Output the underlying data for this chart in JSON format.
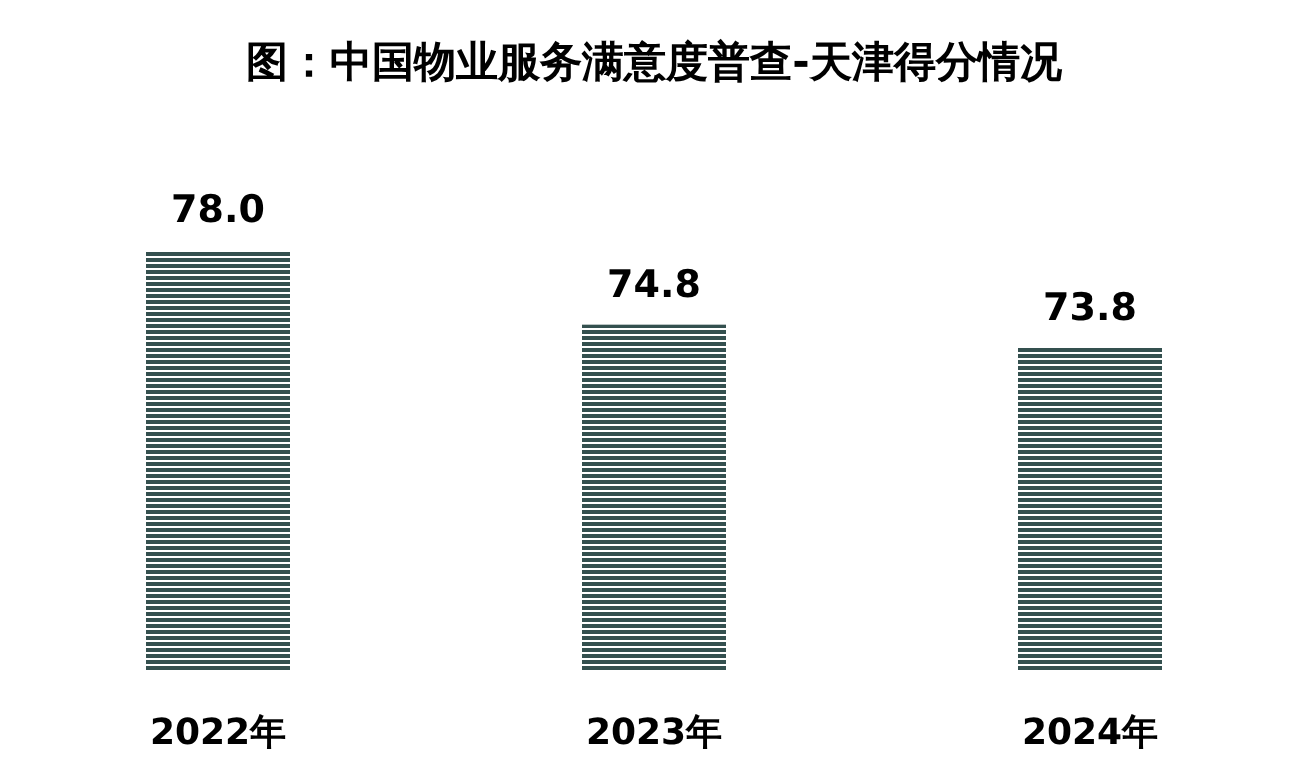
{
  "chart_data": {
    "type": "bar",
    "title": "图：中国物业服务满意度普查-天津得分情况",
    "categories": [
      "2022年",
      "2023年",
      "2024年"
    ],
    "values": [
      78.0,
      74.8,
      73.8
    ],
    "value_labels": [
      "78.0",
      "74.8",
      "73.8"
    ],
    "color": "#34504f",
    "ylim": [
      60,
      78
    ]
  }
}
